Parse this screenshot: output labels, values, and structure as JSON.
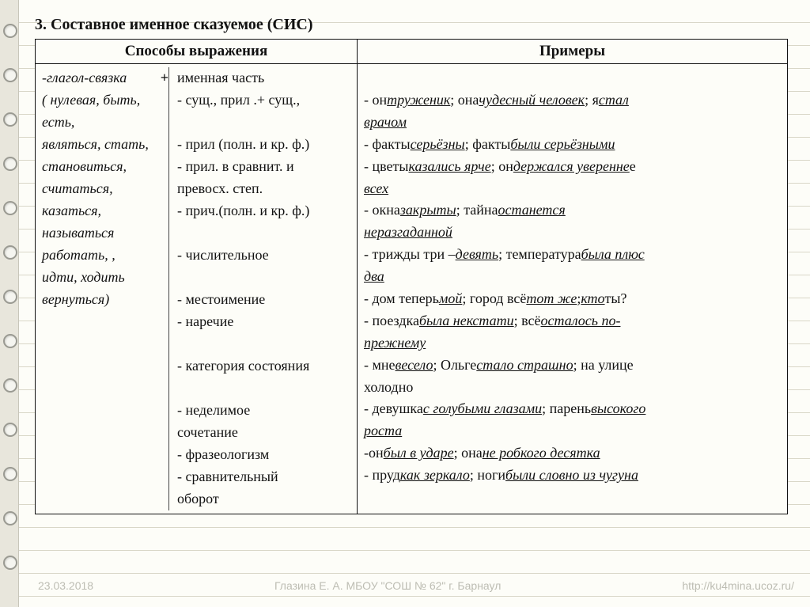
{
  "title": "3. Составное именное сказуемое  (СИС)",
  "headers": {
    "left": "Способы выражения",
    "right": "Примеры"
  },
  "col1_intro": "-глагол-связка",
  "col1_plus": "+",
  "col1_lines": [
    "( нулевая,  быть,",
    "есть,",
    "являться,  стать,",
    "становиться,",
    "считаться,",
    "казаться,",
    "называться",
    "работать,  ,",
    "идти, ходить",
    "вернуться)"
  ],
  "col2_intro": "именная часть",
  "col2_lines": [
    "- сущ., прил .+ сущ.,",
    "",
    "- прил (полн. и кр. ф.)",
    "- прил. в сравнит. и",
    "  превосх. степ.",
    "- прич.(полн. и кр. ф.)",
    "",
    "- числительное",
    "",
    "- местоимение",
    "- наречие",
    "",
    "- категория состояния",
    "",
    " - неделимое",
    "   сочетание",
    " - фразеологизм",
    " - сравнительный",
    "   оборот"
  ],
  "examples": [
    [
      {
        "t": "- он "
      },
      {
        "t": "труженик",
        "u": 1
      },
      {
        "t": ";  она "
      },
      {
        "t": "чудесный человек",
        "u": 1
      },
      {
        "t": ";  я "
      },
      {
        "t": "стал",
        "u": 1
      }
    ],
    [
      {
        "t": "врачом",
        "u": 1
      }
    ],
    [
      {
        "t": "- факты "
      },
      {
        "t": "серьёзны",
        "u": 1
      },
      {
        "t": ";  факты "
      },
      {
        "t": "были серьёзными",
        "u": 1
      }
    ],
    [
      {
        "t": "- цветы "
      },
      {
        "t": "казались ярче",
        "u": 1
      },
      {
        "t": ";  он "
      },
      {
        "t": "держался уверенне",
        "u": 1
      },
      {
        "t": "е"
      }
    ],
    [
      {
        "t": "всех",
        "u": 1
      }
    ],
    [
      {
        "t": "- окна "
      },
      {
        "t": "закрыты",
        "u": 1
      },
      {
        "t": ";  тайна "
      },
      {
        "t": "останется",
        "u": 1
      }
    ],
    [
      {
        "t": "неразгаданной",
        "u": 1
      }
    ],
    [
      {
        "t": "- трижды три – "
      },
      {
        "t": "девять",
        "u": 1
      },
      {
        "t": ";  температура "
      },
      {
        "t": "была плюс",
        "u": 1
      }
    ],
    [
      {
        "t": "два",
        "u": 1
      }
    ],
    [
      {
        "t": "- дом теперь "
      },
      {
        "t": "мой",
        "u": 1
      },
      {
        "t": ";  город всё "
      },
      {
        "t": "тот же",
        "u": 1
      },
      {
        "t": ";  "
      },
      {
        "t": "кто",
        "u": 1
      },
      {
        "t": " ты?"
      }
    ],
    [
      {
        "t": "- поездка "
      },
      {
        "t": "была некстати",
        "u": 1
      },
      {
        "t": ";  всё "
      },
      {
        "t": "осталось по-",
        "u": 1
      }
    ],
    [
      {
        "t": "прежнему",
        "u": 1
      }
    ],
    [
      {
        "t": "- мне "
      },
      {
        "t": "весело",
        "u": 1
      },
      {
        "t": "; Ольге "
      },
      {
        "t": "стало страшно",
        "u": 1
      },
      {
        "t": "; на улице"
      }
    ],
    [
      {
        "t": "холодно"
      }
    ],
    [
      {
        "t": "- девушка "
      },
      {
        "t": "с голубыми глазами",
        "u": 1
      },
      {
        "t": "; парень "
      },
      {
        "t": "высокого",
        "u": 1
      }
    ],
    [
      {
        "t": "роста",
        "u": 1
      }
    ],
    [
      {
        "t": "-он "
      },
      {
        "t": "был в ударе",
        "u": 1
      },
      {
        "t": "; она "
      },
      {
        "t": "не робкого десятка",
        "u": 1
      }
    ],
    [
      {
        "t": "- пруд "
      },
      {
        "t": "как зеркало",
        "u": 1
      },
      {
        "t": "; ноги "
      },
      {
        "t": "были словно из чугуна",
        "u": 1
      }
    ]
  ],
  "footer": {
    "date": "23.03.2018",
    "center": "Глазина Е. А. МБОУ \"СОШ № 62\" г. Барнаул",
    "url": "http://ku4mina.ucoz.ru/"
  }
}
